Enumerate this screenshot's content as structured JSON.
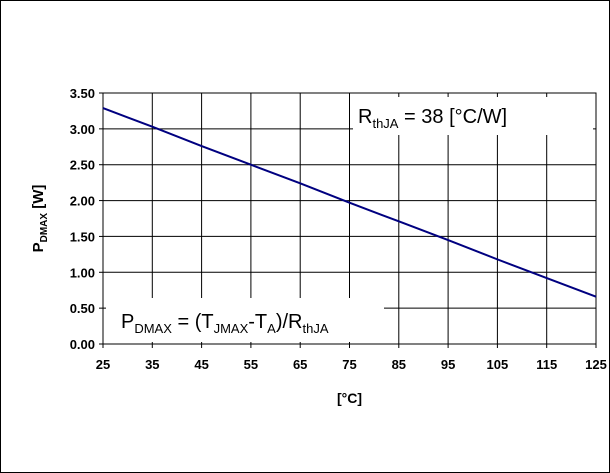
{
  "chart_data": {
    "type": "line",
    "title": "",
    "xlabel": "[°C]",
    "ylabel": {
      "prefix": "P",
      "sub": "DMAX",
      "suffix": " [W]"
    },
    "xlim": [
      25,
      125
    ],
    "ylim": [
      0,
      3.5
    ],
    "x_ticks": [
      25,
      35,
      45,
      55,
      65,
      75,
      85,
      95,
      105,
      115,
      125
    ],
    "y_ticks": [
      "0.00",
      "0.50",
      "1.00",
      "1.50",
      "2.00",
      "2.50",
      "3.00",
      "3.50"
    ],
    "grid": true,
    "series": [
      {
        "color": "#000080",
        "x": [
          25,
          35,
          45,
          55,
          65,
          75,
          85,
          95,
          105,
          115,
          125
        ],
        "y": [
          3.29,
          3.03,
          2.76,
          2.5,
          2.24,
          1.97,
          1.71,
          1.45,
          1.18,
          0.92,
          0.66
        ]
      }
    ],
    "annotations": {
      "rth": {
        "main": "R",
        "sub": "thJA",
        "rest": "  = 38 [°C/W]"
      },
      "formula": {
        "p1": "P",
        "s1": "DMAX",
        "p2": " = (T",
        "s2": "JMAX",
        "p3": "-T",
        "s3": "A",
        "p4": ")/R",
        "s4": "thJA"
      }
    }
  }
}
